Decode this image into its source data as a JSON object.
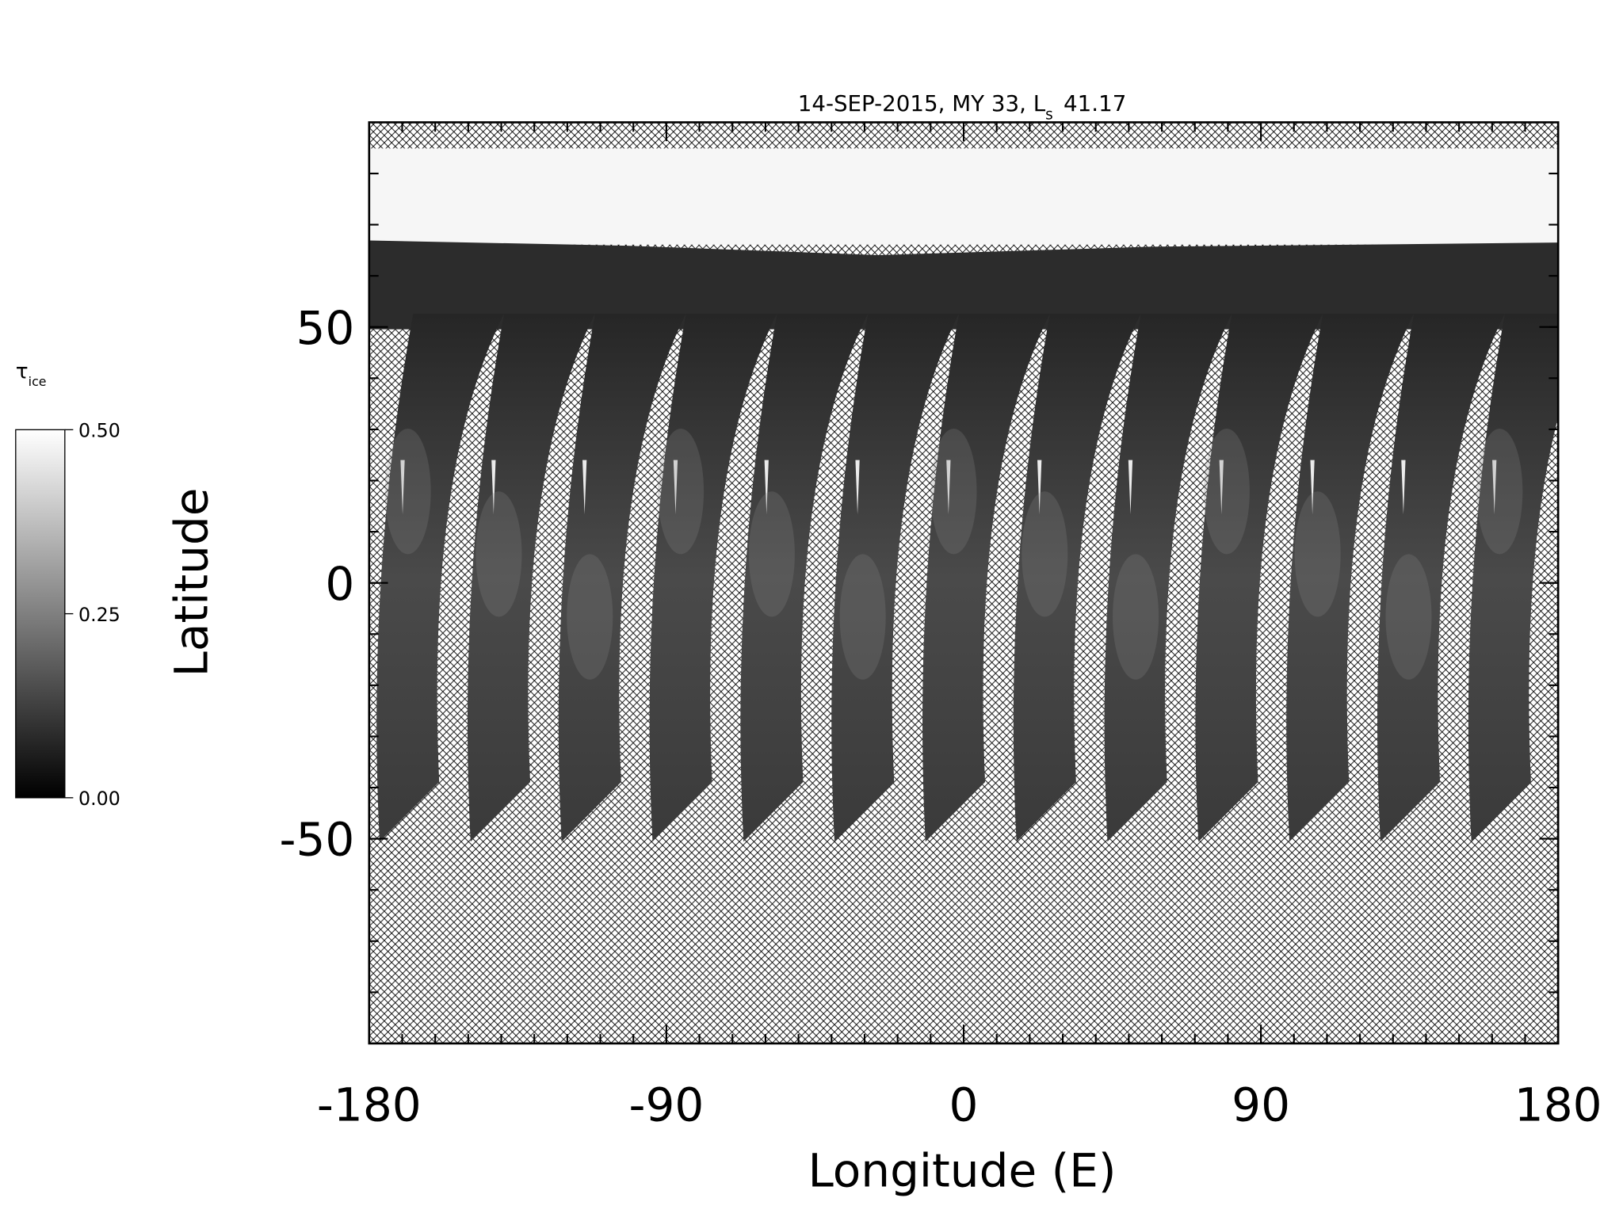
{
  "chart_data": {
    "type": "map",
    "title": {
      "text": "14-SEP-2015, MY 33,  L",
      "subscript": "s",
      "value": "41.17"
    },
    "xlabel": "Longitude (E)",
    "ylabel": "Latitude",
    "xlim": [
      -180,
      180
    ],
    "ylim": [
      -90,
      90
    ],
    "xticks": [
      -180,
      -90,
      0,
      90,
      180
    ],
    "yticks": [
      -50,
      0,
      50
    ],
    "minor_tick_step": 10,
    "colorbar": {
      "label": "τ",
      "label_subscript": "ice",
      "clim": [
        0,
        0.5
      ],
      "ticks": [
        {
          "value": 0,
          "label": "0.00"
        },
        {
          "value": 0.25,
          "label": "0.25"
        },
        {
          "value": 0.5,
          "label": "0.50"
        }
      ],
      "colors": [
        "#000000",
        "#ffffff"
      ]
    }
  }
}
